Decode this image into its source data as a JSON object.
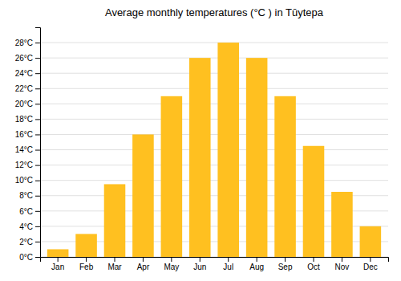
{
  "chart_data": {
    "type": "bar",
    "title": "Average monthly temperatures (°C ) in Tūytepa",
    "categories": [
      "Jan",
      "Feb",
      "Mar",
      "Apr",
      "May",
      "Jun",
      "Jul",
      "Aug",
      "Sep",
      "Oct",
      "Nov",
      "Dec"
    ],
    "values": [
      1,
      3,
      9.5,
      16,
      21,
      26,
      28,
      26,
      21,
      14.5,
      8.5,
      4
    ],
    "color": "#FFC020",
    "ylim": [
      0,
      30
    ],
    "yticks": [
      {
        "value": 0,
        "label": "0°C"
      },
      {
        "value": 2,
        "label": "2°C"
      },
      {
        "value": 4,
        "label": "4°C"
      },
      {
        "value": 6,
        "label": "6°C"
      },
      {
        "value": 8,
        "label": "8°C"
      },
      {
        "value": 10,
        "label": "10°C"
      },
      {
        "value": 12,
        "label": "12°C"
      },
      {
        "value": 14,
        "label": "14°C"
      },
      {
        "value": 16,
        "label": "16°C"
      },
      {
        "value": 18,
        "label": "18°C"
      },
      {
        "value": 20,
        "label": "20°C"
      },
      {
        "value": 22,
        "label": "22°C"
      },
      {
        "value": 24,
        "label": "24°C"
      },
      {
        "value": 26,
        "label": "26°C"
      },
      {
        "value": 28,
        "label": "28°C"
      }
    ],
    "grid": true
  }
}
